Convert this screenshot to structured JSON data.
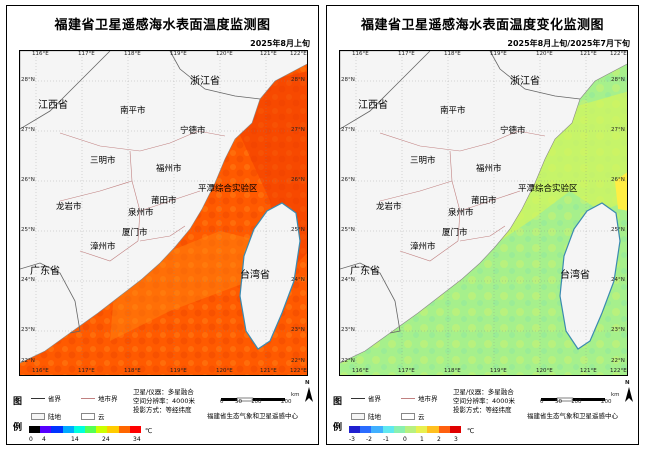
{
  "left": {
    "title": "福建省卫星遥感海水表面温度监测图",
    "date": "2025年8月上旬",
    "cbar_labels": [
      "0",
      "4",
      "14",
      "24",
      "34"
    ],
    "unit": "℃"
  },
  "right": {
    "title": "福建省卫星遥感海水表面温度变化监测图",
    "date": "2025年8月上旬/2025年7月下旬",
    "cbar_labels": [
      "-3",
      "-2",
      "-1",
      "0",
      "1",
      "2",
      "3"
    ],
    "unit": "℃"
  },
  "ticks": {
    "lon": [
      "116°E",
      "117°E",
      "118°E",
      "119°E",
      "120°E",
      "121°E",
      "122°E"
    ],
    "lat": [
      "28°N",
      "27°N",
      "26°N",
      "25°N",
      "24°N",
      "23°N",
      "22°N"
    ]
  },
  "labels": {
    "zhejiang": "浙江省",
    "jiangxi": "江西省",
    "nanping": "南平市",
    "ningde": "宁德市",
    "sanming": "三明市",
    "fuzhou": "福州市",
    "pingtan": "平潭综合实验区",
    "putian": "莆田市",
    "longyan": "龙岩市",
    "quanzhou": "泉州市",
    "xiamen": "厦门市",
    "zhangzhou": "漳州市",
    "guangdong": "广东省",
    "taiwan": "台湾省"
  },
  "legend": {
    "title_top": "图",
    "title_bottom": "例",
    "province_border": "省界",
    "city_border": "地市界",
    "land": "陆地",
    "cloud": "云",
    "satellite": "卫星/仪器：多星融合",
    "resolution": "空间分辨率：4000米",
    "projection": "投影方式：等经纬度",
    "organization": "福建省生态气象和卫星遥感中心",
    "scale_labels": [
      "0",
      "50",
      "100",
      "200"
    ],
    "scale_unit": "km",
    "north": "N"
  },
  "colors": {
    "land": "#f5f5f5",
    "border": "#777777",
    "sea_temp": "#ff5a00",
    "sea_temp_alt": "#ff8800",
    "sea_change": "#a6f08c",
    "sea_change_alt": "#d4f55a"
  }
}
